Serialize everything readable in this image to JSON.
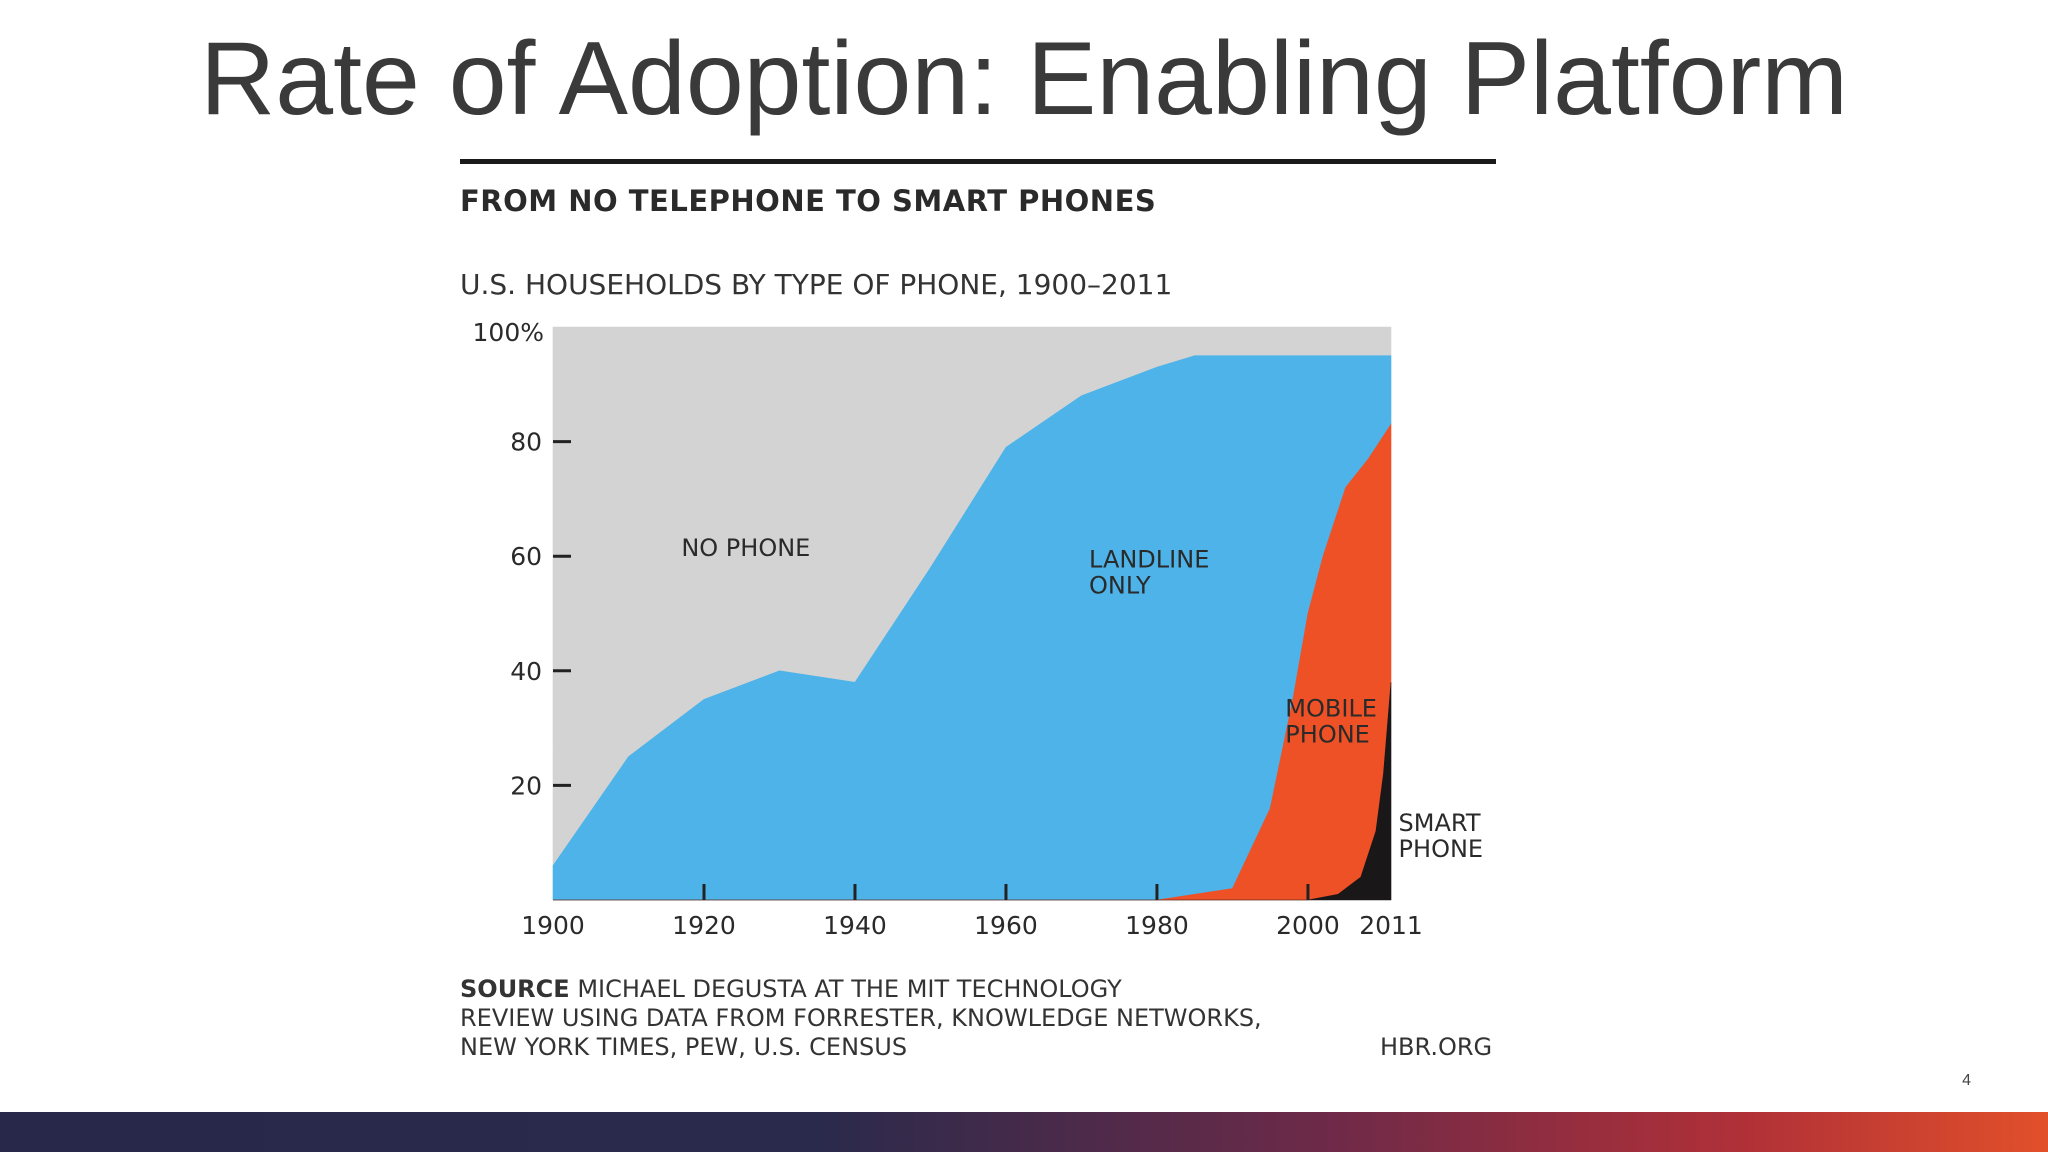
{
  "slide": {
    "title": "Rate of Adoption: Enabling Platform",
    "page_number": "4"
  },
  "colors": {
    "no_phone": "#d3d3d3",
    "landline_only": "#4db3e8",
    "mobile_phone": "#ee5126",
    "smart_phone": "#1a1718"
  },
  "chart_data": {
    "type": "area",
    "title": "FROM NO TELEPHONE TO SMART PHONES",
    "subtitle": "U.S. HOUSEHOLDS BY TYPE OF PHONE, 1900–2011",
    "xlabel": "",
    "ylabel": "",
    "xlim": [
      1900,
      2011
    ],
    "ylim": [
      0,
      100
    ],
    "y_ticks": [
      {
        "value": 100,
        "label": "100%"
      },
      {
        "value": 80,
        "label": "80"
      },
      {
        "value": 60,
        "label": "60"
      },
      {
        "value": 40,
        "label": "40"
      },
      {
        "value": 20,
        "label": "20"
      }
    ],
    "x_ticks": [
      {
        "value": 1900,
        "label": "1900"
      },
      {
        "value": 1920,
        "label": "1920"
      },
      {
        "value": 1940,
        "label": "1940"
      },
      {
        "value": 1960,
        "label": "1960"
      },
      {
        "value": 1980,
        "label": "1980"
      },
      {
        "value": 2000,
        "label": "2000"
      },
      {
        "value": 2011,
        "label": "2011"
      }
    ],
    "series": [
      {
        "name": "NO PHONE",
        "label_lines": [
          "NO PHONE"
        ],
        "label_at": [
          1917,
          60
        ],
        "upper": [
          [
            1900,
            100
          ],
          [
            2011,
            100
          ]
        ],
        "lower": [
          [
            1900,
            6
          ],
          [
            1910,
            25
          ],
          [
            1920,
            35
          ],
          [
            1930,
            40
          ],
          [
            1940,
            38
          ],
          [
            1950,
            58
          ],
          [
            1960,
            79
          ],
          [
            1970,
            88
          ],
          [
            1980,
            93
          ],
          [
            1985,
            95
          ],
          [
            1990,
            95
          ],
          [
            2000,
            95
          ],
          [
            2005,
            95
          ],
          [
            2011,
            95
          ]
        ]
      },
      {
        "name": "LANDLINE ONLY",
        "label_lines": [
          "LANDLINE",
          "ONLY"
        ],
        "label_at": [
          1971,
          58
        ],
        "upper": [
          [
            1900,
            6
          ],
          [
            1910,
            25
          ],
          [
            1920,
            35
          ],
          [
            1930,
            40
          ],
          [
            1940,
            38
          ],
          [
            1950,
            58
          ],
          [
            1960,
            79
          ],
          [
            1970,
            88
          ],
          [
            1980,
            93
          ],
          [
            1985,
            95
          ],
          [
            1990,
            95
          ],
          [
            2000,
            95
          ],
          [
            2005,
            95
          ],
          [
            2011,
            95
          ]
        ],
        "lower": [
          [
            1900,
            0
          ],
          [
            1980,
            0
          ],
          [
            1990,
            2
          ],
          [
            1995,
            16
          ],
          [
            1998,
            35
          ],
          [
            2000,
            50
          ],
          [
            2002,
            60
          ],
          [
            2005,
            72
          ],
          [
            2008,
            77
          ],
          [
            2011,
            83
          ]
        ]
      },
      {
        "name": "MOBILE PHONE",
        "label_lines": [
          "MOBILE",
          "PHONE"
        ],
        "label_at": [
          1997,
          32
        ],
        "upper": [
          [
            1900,
            0
          ],
          [
            1980,
            0
          ],
          [
            1990,
            2
          ],
          [
            1995,
            16
          ],
          [
            1998,
            35
          ],
          [
            2000,
            50
          ],
          [
            2002,
            60
          ],
          [
            2005,
            72
          ],
          [
            2008,
            77
          ],
          [
            2011,
            83
          ]
        ],
        "lower": [
          [
            1900,
            0
          ],
          [
            2000,
            0
          ],
          [
            2004,
            1
          ],
          [
            2007,
            4
          ],
          [
            2009,
            12
          ],
          [
            2010,
            22
          ],
          [
            2011,
            38
          ]
        ]
      },
      {
        "name": "SMART PHONE",
        "label_lines": [
          "SMART",
          "PHONE"
        ],
        "label_at": [
          2012,
          12
        ],
        "upper": [
          [
            1900,
            0
          ],
          [
            2000,
            0
          ],
          [
            2004,
            1
          ],
          [
            2007,
            4
          ],
          [
            2009,
            12
          ],
          [
            2010,
            22
          ],
          [
            2011,
            38
          ]
        ],
        "lower": [
          [
            1900,
            0
          ],
          [
            2011,
            0
          ]
        ]
      }
    ],
    "grid": false,
    "legend": "none",
    "source_label": "SOURCE",
    "source_lines": [
      "MICHAEL DEGUSTA AT THE MIT TECHNOLOGY",
      "REVIEW USING DATA FROM FORRESTER, KNOWLEDGE NETWORKS,",
      "NEW YORK TIMES, PEW, U.S. CENSUS"
    ],
    "credit": "HBR.ORG"
  }
}
